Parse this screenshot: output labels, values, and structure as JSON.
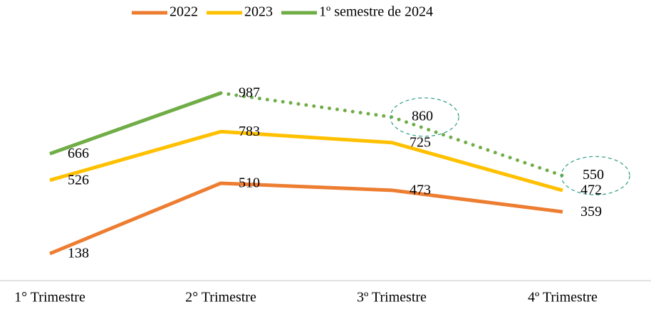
{
  "chart_data": {
    "type": "line",
    "categories": [
      "1° Trimestre",
      "2° Trimestre",
      "3º Trimestre",
      "4º Trimestre"
    ],
    "series": [
      {
        "name": "2022",
        "color": "#ed7d31",
        "values": [
          138,
          510,
          473,
          359
        ]
      },
      {
        "name": "2023",
        "color": "#ffc000",
        "values": [
          526,
          783,
          725,
          472
        ]
      },
      {
        "name": "1º semestre de 2024",
        "color": "#70ad47",
        "values": [
          666,
          987,
          860,
          550
        ],
        "dotted_from": 1
      }
    ],
    "legend": "top"
  }
}
